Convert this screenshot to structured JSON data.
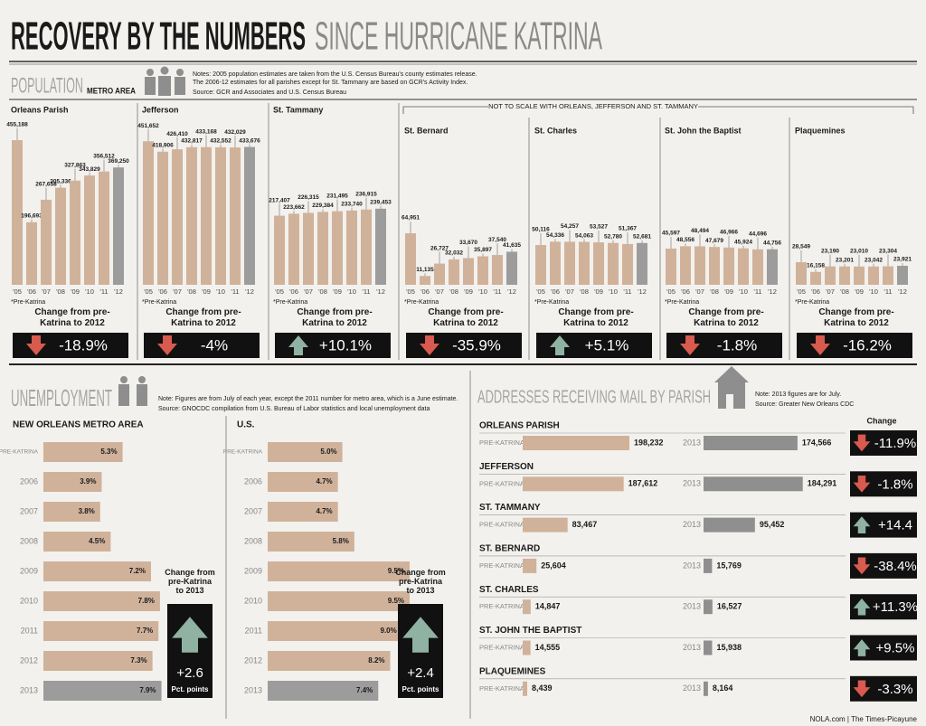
{
  "header": {
    "title": "RECOVERY BY THE NUMBERS",
    "subtitle": "SINCE HURRICANE KATRINA"
  },
  "population": {
    "title": "POPULATION",
    "subtitle": "METRO AREA",
    "notes": [
      "Notes: 2005 population estimates are taken from the U.S. Census Bureau's county estimates release.",
      "The 2006-12 estimates for all parishes except for St. Tammany are based on GCR's Activity Index."
    ],
    "source": "Source: GCR and Associates and U.S. Census Bureau",
    "scale_note": "NOT TO SCALE WITH ORLEANS, JEFFERSON AND ST. TAMMANY"
  },
  "unemployment": {
    "title": "UNEMPLOYMENT",
    "notes": [
      "Note: Figures are from July of each year, except the 2011 number for metro area, which is a June estimate.",
      "Source: GNOCDC compilation from U.S. Bureau of Labor statistics and local unemployment data"
    ]
  },
  "mail": {
    "title": "ADDRESSES RECEIVING MAIL BY PARISH",
    "notes": [
      "Note: 2013 figures are for July.",
      "Source: Greater New Orleans CDC"
    ]
  },
  "footer": "NOLA.com | The Times-Picayune",
  "chart_data": [
    {
      "type": "bar",
      "title": "Orleans Parish",
      "categories": [
        "'05",
        "'06",
        "'07",
        "'08",
        "'09",
        "'10",
        "'11",
        "'12"
      ],
      "values": [
        455188,
        196693,
        267658,
        305336,
        327863,
        343829,
        356512,
        369250
      ],
      "value_labels": [
        "455,188",
        "196,693",
        "267,658",
        "305,336",
        "327,863",
        "343,829",
        "356,512",
        "369,250"
      ],
      "footnote": "*Pre-Katrina",
      "change_label": "Change from pre-Katrina to 2012",
      "change": {
        "value": -18.9,
        "label": "-18.9%"
      },
      "color": "#d0b29b",
      "highlight_color": "#9c9c9c"
    },
    {
      "type": "bar",
      "title": "Jefferson",
      "categories": [
        "'05",
        "'06",
        "'07",
        "'08",
        "'09",
        "'10",
        "'11",
        "'12"
      ],
      "values": [
        451652,
        418906,
        426410,
        432817,
        433168,
        432552,
        432029,
        433676
      ],
      "value_labels": [
        "451,652",
        "418,906",
        "426,410",
        "432,817",
        "433,168",
        "432,552",
        "432,029",
        "433,676"
      ],
      "footnote": "*Pre-Katrina",
      "change_label": "Change from pre-Katrina to 2012",
      "change": {
        "value": -4,
        "label": "-4%"
      },
      "color": "#d0b29b",
      "highlight_color": "#9c9c9c"
    },
    {
      "type": "bar",
      "title": "St. Tammany",
      "categories": [
        "'05",
        "'06",
        "'07",
        "'08",
        "'09",
        "'10",
        "'11",
        "'12"
      ],
      "values": [
        217407,
        223662,
        226315,
        229384,
        231495,
        233740,
        236915,
        239453
      ],
      "value_labels": [
        "217,407",
        "223,662",
        "226,315",
        "229,384",
        "231,495",
        "233,740",
        "236,915",
        "239,453"
      ],
      "footnote": "*Pre-Katrina",
      "change_label": "Change from pre-Katrina to 2012",
      "change": {
        "value": 10.1,
        "label": "+10.1%"
      },
      "color": "#d0b29b",
      "highlight_color": "#9c9c9c"
    },
    {
      "type": "bar",
      "title": "St. Bernard",
      "categories": [
        "'05",
        "'06",
        "'07",
        "'08",
        "'09",
        "'10",
        "'11",
        "'12"
      ],
      "values": [
        64951,
        11135,
        26727,
        32032,
        33670,
        35897,
        37540,
        41635
      ],
      "value_labels": [
        "64,951",
        "11,135",
        "26,727",
        "32,032",
        "33,670",
        "35,897",
        "37,540",
        "41,635"
      ],
      "footnote": "*Pre-Katrina",
      "change_label": "Change from pre-Katrina to 2012",
      "change": {
        "value": -35.9,
        "label": "-35.9%"
      },
      "color": "#d0b29b",
      "highlight_color": "#9c9c9c"
    },
    {
      "type": "bar",
      "title": "St. Charles",
      "categories": [
        "'05",
        "'06",
        "'07",
        "'08",
        "'09",
        "'10",
        "'11",
        "'12"
      ],
      "values": [
        50116,
        54336,
        54257,
        54063,
        53527,
        52780,
        51367,
        52681
      ],
      "value_labels": [
        "50,116",
        "54,336",
        "54,257",
        "54,063",
        "53,527",
        "52,780",
        "51,367",
        "52,681"
      ],
      "footnote": "*Pre-Katrina",
      "change_label": "Change from pre-Katrina to 2012",
      "change": {
        "value": 5.1,
        "label": "+5.1%"
      },
      "color": "#d0b29b",
      "highlight_color": "#9c9c9c"
    },
    {
      "type": "bar",
      "title": "St. John the Baptist",
      "categories": [
        "'05",
        "'06",
        "'07",
        "'08",
        "'09",
        "'10",
        "'11",
        "'12"
      ],
      "values": [
        45597,
        48556,
        48494,
        47679,
        46966,
        45924,
        44696,
        44756
      ],
      "value_labels": [
        "45,597",
        "48,556",
        "48,494",
        "47,679",
        "46,966",
        "45,924",
        "44,696",
        "44,756"
      ],
      "footnote": "*Pre-Katrina",
      "change_label": "Change from pre-Katrina to 2012",
      "change": {
        "value": -1.8,
        "label": "-1.8%"
      },
      "color": "#d0b29b",
      "highlight_color": "#9c9c9c"
    },
    {
      "type": "bar",
      "title": "Plaquemines",
      "categories": [
        "'05",
        "'06",
        "'07",
        "'08",
        "'09",
        "'10",
        "'11",
        "'12"
      ],
      "values": [
        28549,
        16158,
        23190,
        23201,
        23010,
        23042,
        23304,
        23921
      ],
      "value_labels": [
        "28,549",
        "16,158",
        "23,190",
        "23,201",
        "23,010",
        "23,042",
        "23,304",
        "23,921"
      ],
      "footnote": "*Pre-Katrina",
      "change_label": "Change from pre-Katrina to 2012",
      "change": {
        "value": -16.2,
        "label": "-16.2%"
      },
      "color": "#d0b29b",
      "highlight_color": "#9c9c9c"
    },
    {
      "type": "hbar",
      "title": "NEW ORLEANS METRO AREA",
      "categories": [
        "PRE-KATRINA",
        "2006",
        "2007",
        "2008",
        "2009",
        "2010",
        "2011",
        "2012",
        "2013"
      ],
      "values": [
        5.3,
        3.9,
        3.8,
        4.5,
        7.2,
        7.8,
        7.7,
        7.3,
        7.9
      ],
      "value_labels": [
        "5.3%",
        "3.9%",
        "3.8%",
        "4.5%",
        "7.2%",
        "7.8%",
        "7.7%",
        "7.3%",
        "7.9%"
      ],
      "change_label": "Change from pre-Katrina to 2013",
      "change": {
        "value": 2.6,
        "label": "+2.6"
      },
      "change_unit": "Pct. points",
      "color": "#d0b29b",
      "highlight_color": "#9c9c9c"
    },
    {
      "type": "hbar",
      "title": "U.S.",
      "categories": [
        "PRE-KATRINA",
        "2006",
        "2007",
        "2008",
        "2009",
        "2010",
        "2011",
        "2012",
        "2013"
      ],
      "values": [
        5.0,
        4.7,
        4.7,
        5.8,
        9.5,
        9.5,
        9.0,
        8.2,
        7.4
      ],
      "value_labels": [
        "5.0%",
        "4.7%",
        "4.7%",
        "5.8%",
        "9.5%",
        "9.5%",
        "9.0%",
        "8.2%",
        "7.4%"
      ],
      "change_label": "Change from pre-Katrina to 2013",
      "change": {
        "value": 2.4,
        "label": "+2.4"
      },
      "change_unit": "Pct. points",
      "color": "#d0b29b",
      "highlight_color": "#9c9c9c"
    },
    {
      "type": "paired-hbar",
      "categories": [
        "PRE-KATRINA",
        "2013"
      ],
      "change_header": "Change",
      "colors": [
        "#d0b29b",
        "#8f8f8f"
      ],
      "series": [
        {
          "name": "ORLEANS PARISH",
          "values": [
            198232,
            174566
          ],
          "value_labels": [
            "198,232",
            "174,566"
          ],
          "change": {
            "value": -11.9,
            "label": "-11.9%"
          }
        },
        {
          "name": "JEFFERSON",
          "values": [
            187612,
            184291
          ],
          "value_labels": [
            "187,612",
            "184,291"
          ],
          "change": {
            "value": -1.8,
            "label": "-1.8%"
          }
        },
        {
          "name": "ST. TAMMANY",
          "values": [
            83467,
            95452
          ],
          "value_labels": [
            "83,467",
            "95,452"
          ],
          "change": {
            "value": 14.4,
            "label": "+14.4"
          }
        },
        {
          "name": "ST. BERNARD",
          "values": [
            25604,
            15769
          ],
          "value_labels": [
            "25,604",
            "15,769"
          ],
          "change": {
            "value": -38.4,
            "label": "-38.4%"
          }
        },
        {
          "name": "ST. CHARLES",
          "values": [
            14847,
            16527
          ],
          "value_labels": [
            "14,847",
            "16,527"
          ],
          "change": {
            "value": 11.3,
            "label": "+11.3%"
          }
        },
        {
          "name": "ST. JOHN THE BAPTIST",
          "values": [
            14555,
            15938
          ],
          "value_labels": [
            "14,555",
            "15,938"
          ],
          "change": {
            "value": 9.5,
            "label": "+9.5%"
          }
        },
        {
          "name": "PLAQUEMINES",
          "values": [
            8439,
            8164
          ],
          "value_labels": [
            "8,439",
            "8,164"
          ],
          "change": {
            "value": -3.3,
            "label": "-3.3%"
          }
        }
      ]
    }
  ]
}
